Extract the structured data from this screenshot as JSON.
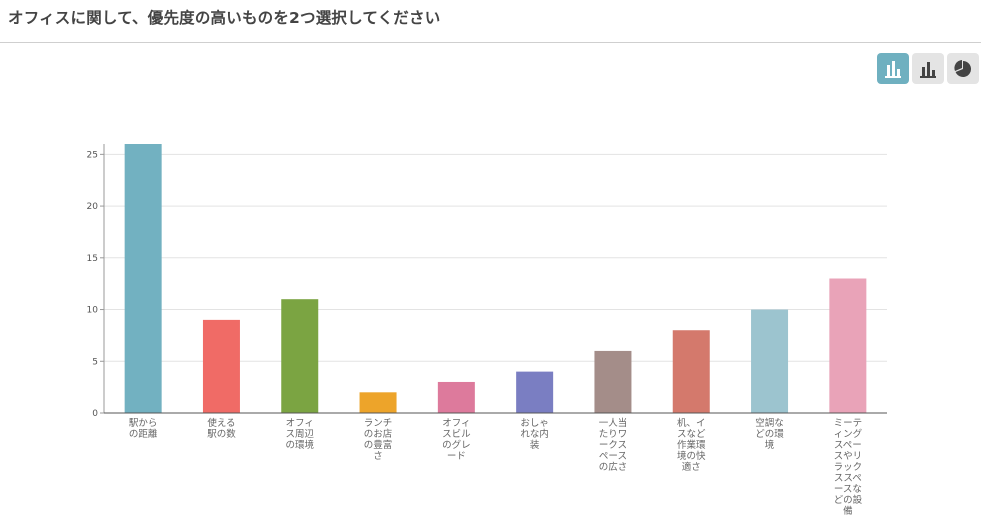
{
  "header": {
    "title": "オフィスに関して、優先度の高いものを2つ選択してください"
  },
  "toolbar": {
    "buttons": [
      {
        "name": "bar-chart-icon",
        "active": true
      },
      {
        "name": "bar-chart-alt-icon",
        "active": false
      },
      {
        "name": "pie-chart-icon",
        "active": false
      }
    ],
    "active_color": "#6fb0c0",
    "inactive_color": "#e4e4e4"
  },
  "chart_data": {
    "type": "bar",
    "title": "",
    "xlabel": "",
    "ylabel": "",
    "ylim": [
      0,
      26
    ],
    "yticks": [
      0,
      5,
      10,
      15,
      20,
      25
    ],
    "grid": true,
    "categories": [
      [
        "駅から",
        "の距離"
      ],
      [
        "使える",
        "駅の数"
      ],
      [
        "オフィ",
        "ス周辺",
        "の環境"
      ],
      [
        "ランチ",
        "のお店",
        "の豊富",
        "さ"
      ],
      [
        "オフィ",
        "スビル",
        "のグレ",
        "ード"
      ],
      [
        "おしゃ",
        "れな内",
        "装"
      ],
      [
        "一人当",
        "たりワ",
        "ークス",
        "ペース",
        "の広さ"
      ],
      [
        "机、イ",
        "スなど",
        "作業環",
        "境の快",
        "適さ"
      ],
      [
        "空調な",
        "どの環",
        "境"
      ],
      [
        "ミーテ",
        "ィング",
        "スペー",
        "スやリ",
        "ラック",
        "ススペ",
        "ースな",
        "どの設",
        "備"
      ]
    ],
    "values": [
      26,
      9,
      11,
      2,
      3,
      4,
      6,
      8,
      10,
      13
    ],
    "colors": [
      "#72b1c1",
      "#f06b66",
      "#7ba442",
      "#eda42a",
      "#dd7a9c",
      "#7a7ec2",
      "#a48d89",
      "#d4796c",
      "#9cc4cf",
      "#e9a3b8"
    ]
  }
}
